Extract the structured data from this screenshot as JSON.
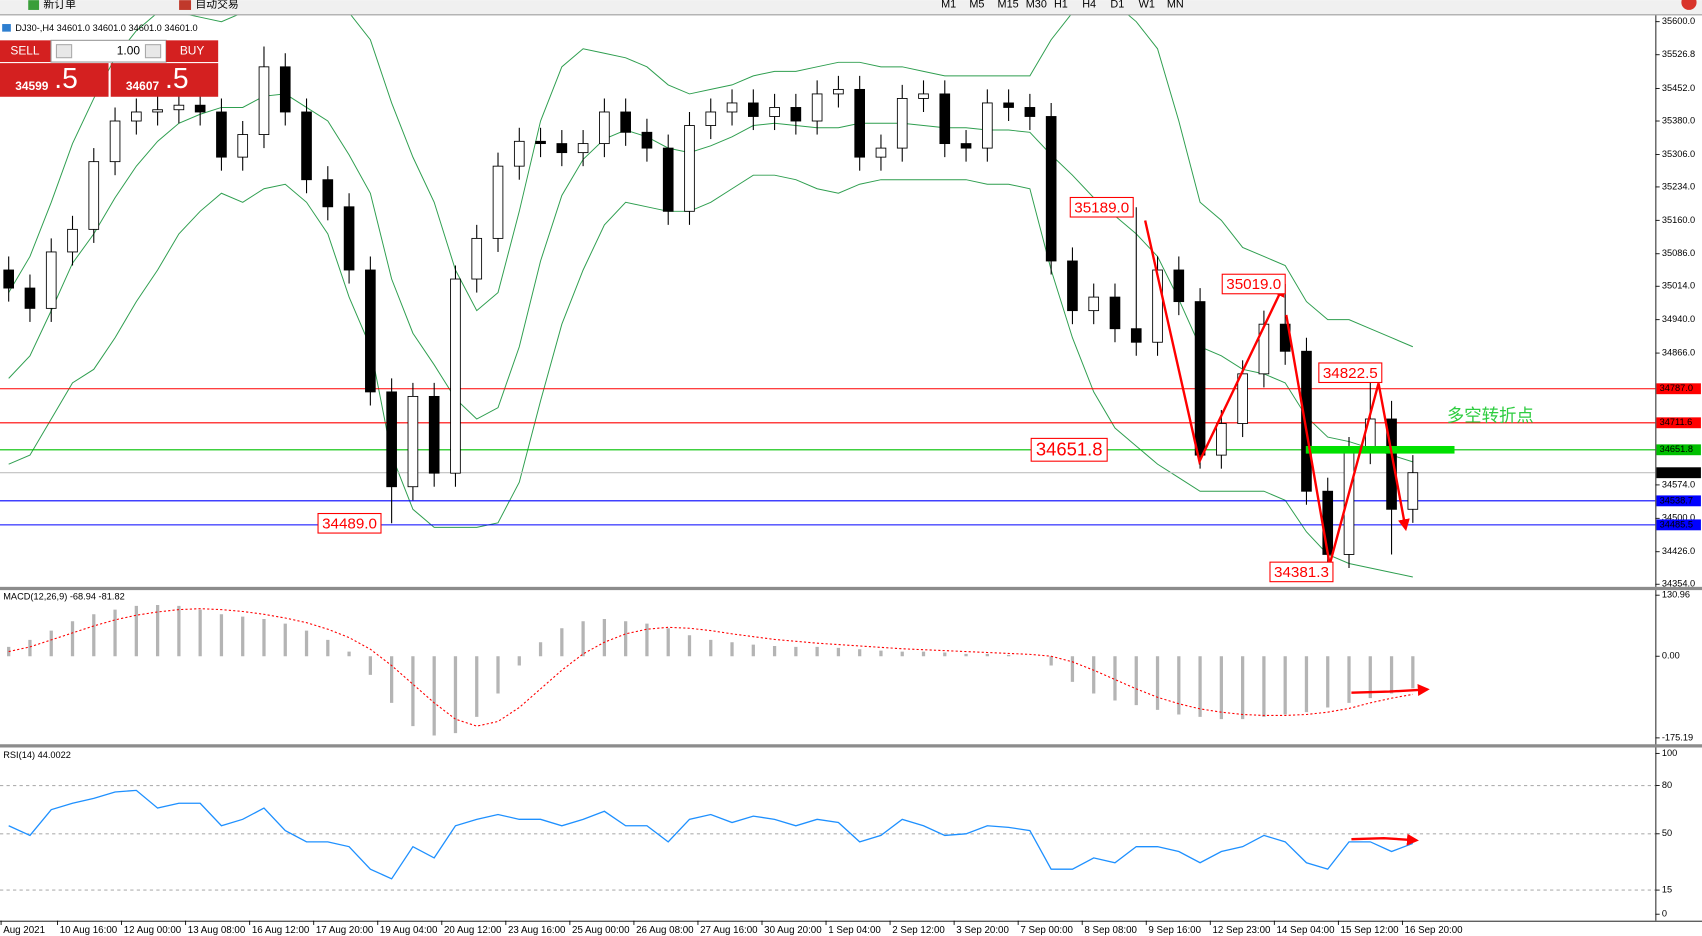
{
  "toolbar": {
    "buttons": [
      "新订单",
      "自动交易"
    ],
    "timeframes": [
      "M1",
      "M5",
      "M15",
      "M30",
      "H1",
      "H4",
      "D1",
      "W1",
      "MN"
    ]
  },
  "trade_panel": {
    "sell": "SELL",
    "lot": "1.00",
    "buy": "BUY",
    "bid_main": "34599",
    "bid_pips": ".5",
    "ask_main": "34607",
    "ask_pips": ".5"
  },
  "chart_data": [
    {
      "type": "candlestick",
      "title": "DJ30-,H4  34601.0 34601.0 34601.0 34601.0",
      "open": [
        35050,
        35010,
        34965,
        35090,
        35140,
        35290,
        35380,
        35400,
        35405,
        35415,
        35400,
        35300,
        35350,
        35500,
        35400,
        35250,
        35190,
        35050,
        34780,
        34570,
        34770,
        34600,
        35030,
        35120,
        35280,
        35335,
        35330,
        35310,
        35330,
        35400,
        35355,
        35320,
        35180,
        35370,
        35400,
        35420,
        35390,
        35410,
        35380,
        35440,
        35450,
        35300,
        35320,
        35430,
        35440,
        35330,
        35320,
        35420,
        35410,
        35390,
        35070,
        34960,
        34990,
        34920,
        34890,
        35050,
        34980,
        34640,
        34710,
        34820,
        34930,
        34870,
        34560,
        34420,
        34650,
        34720,
        34520
      ],
      "high": [
        35080,
        35040,
        35120,
        35170,
        35320,
        35410,
        35430,
        35435,
        35445,
        35445,
        35430,
        35380,
        35545,
        35530,
        35430,
        35280,
        35220,
        35080,
        34810,
        34800,
        34800,
        35060,
        35150,
        35310,
        35365,
        35365,
        35360,
        35360,
        35430,
        35430,
        35385,
        35350,
        35400,
        35430,
        35450,
        35450,
        35440,
        35440,
        35470,
        35480,
        35480,
        35350,
        35460,
        35470,
        35470,
        35360,
        35450,
        35450,
        35440,
        35420,
        35100,
        35020,
        35020,
        35189,
        35080,
        35080,
        35010,
        34740,
        34850,
        34960,
        35019,
        34900,
        34590,
        34680,
        34822,
        34760,
        34640
      ],
      "low": [
        34980,
        34935,
        34935,
        35060,
        35110,
        35260,
        35350,
        35370,
        35375,
        35370,
        35270,
        35270,
        35320,
        35370,
        35220,
        35160,
        35020,
        34750,
        34489,
        34540,
        34570,
        34570,
        35000,
        35090,
        35250,
        35300,
        35280,
        35280,
        35300,
        35325,
        35290,
        35150,
        35150,
        35340,
        35370,
        35360,
        35360,
        35350,
        35350,
        35410,
        35270,
        35270,
        35290,
        35400,
        35300,
        35290,
        35290,
        35380,
        35360,
        35040,
        34930,
        34930,
        34890,
        34860,
        34860,
        34950,
        34610,
        34610,
        34680,
        34790,
        34840,
        34530,
        34381,
        34390,
        34620,
        34420,
        34490
      ],
      "close": [
        35010,
        34965,
        35090,
        35140,
        35290,
        35380,
        35400,
        35405,
        35415,
        35400,
        35300,
        35350,
        35500,
        35400,
        35250,
        35190,
        35050,
        34780,
        34570,
        34770,
        34600,
        35030,
        35120,
        35280,
        35335,
        35330,
        35310,
        35330,
        35400,
        35355,
        35320,
        35180,
        35370,
        35400,
        35420,
        35390,
        35410,
        35380,
        35440,
        35450,
        35300,
        35320,
        35430,
        35440,
        35330,
        35320,
        35420,
        35410,
        35390,
        35070,
        34960,
        34990,
        34920,
        34890,
        35050,
        34980,
        34640,
        34710,
        34820,
        34930,
        34870,
        34560,
        34420,
        34650,
        34720,
        34520,
        34601
      ],
      "bands": [
        {
          "color": "#2e9e4f",
          "values": [
            35000,
            35080,
            35200,
            35330,
            35430,
            35520,
            35580,
            35620,
            35620,
            35610,
            35600,
            35620,
            35640,
            35640,
            35620,
            35630,
            35620,
            35560,
            35420,
            35300,
            35200,
            35050,
            34960,
            35000,
            35180,
            35380,
            35500,
            35540,
            35530,
            35520,
            35500,
            35460,
            35440,
            35450,
            35460,
            35480,
            35490,
            35490,
            35500,
            35510,
            35510,
            35500,
            35500,
            35490,
            35480,
            35480,
            35480,
            35480,
            35480,
            35560,
            35620,
            35640,
            35640,
            35600,
            35540,
            35380,
            35200,
            35160,
            35100,
            35080,
            35060,
            34980,
            34940,
            34940,
            34920,
            34900,
            34880
          ]
        },
        {
          "color": "#2e9e4f",
          "values": [
            34810,
            34860,
            34960,
            35065,
            35130,
            35210,
            35280,
            35335,
            35375,
            35395,
            35410,
            35410,
            35435,
            35440,
            35410,
            35380,
            35305,
            35220,
            35030,
            34910,
            34840,
            34765,
            34720,
            34745,
            34880,
            35070,
            35215,
            35295,
            35340,
            35360,
            35345,
            35320,
            35310,
            35325,
            35345,
            35370,
            35375,
            35370,
            35365,
            35365,
            35375,
            35375,
            35375,
            35370,
            35365,
            35365,
            35360,
            35360,
            35355,
            35305,
            35260,
            35210,
            35170,
            35130,
            35080,
            34985,
            34880,
            34860,
            34830,
            34820,
            34800,
            34725,
            34680,
            34670,
            34655,
            34640,
            34625
          ]
        },
        {
          "color": "#2e9e4f",
          "values": [
            34620,
            34640,
            34720,
            34800,
            34830,
            34900,
            34980,
            35050,
            35130,
            35180,
            35220,
            35200,
            35230,
            35240,
            35200,
            35130,
            34990,
            34880,
            34640,
            34520,
            34480,
            34480,
            34480,
            34490,
            34580,
            34760,
            34930,
            35050,
            35150,
            35200,
            35190,
            35180,
            35180,
            35200,
            35230,
            35260,
            35260,
            35250,
            35230,
            35220,
            35240,
            35250,
            35250,
            35250,
            35250,
            35250,
            35240,
            35240,
            35230,
            35050,
            34900,
            34780,
            34700,
            34660,
            34620,
            34590,
            34560,
            34560,
            34560,
            34560,
            34540,
            34470,
            34420,
            34400,
            34390,
            34380,
            34370
          ]
        }
      ],
      "ylim": [
        34347,
        35614
      ],
      "yticks": [
        {
          "value": 35600,
          "label": "35600.0"
        },
        {
          "value": 35526.8,
          "label": "35526.8"
        },
        {
          "value": 35452,
          "label": "35452.0"
        },
        {
          "value": 35380,
          "label": "35380.0"
        },
        {
          "value": 35306,
          "label": "35306.0"
        },
        {
          "value": 35234,
          "label": "35234.0"
        },
        {
          "value": 35160,
          "label": "35160.0"
        },
        {
          "value": 35086,
          "label": "35086.0"
        },
        {
          "value": 35014,
          "label": "35014.0"
        },
        {
          "value": 34940,
          "label": "34940.0"
        },
        {
          "value": 34866,
          "label": "34866.0"
        },
        {
          "value": 34574,
          "label": "34574.0"
        },
        {
          "value": 34500,
          "label": "34500.0"
        },
        {
          "value": 34426,
          "label": "34426.0"
        },
        {
          "value": 34354,
          "label": "34354.0"
        }
      ],
      "hlines": {
        "values": [
          34787,
          34711.6,
          34651.8,
          34601,
          34538.7,
          34485.5
        ],
        "value_labels": [
          "34787.0",
          "34711.6",
          "34651.8",
          "34601.0",
          "34538.7",
          "34485.5"
        ],
        "colors": [
          "#ff0000",
          "#ff0000",
          "#00c000",
          "#c0c0c0",
          "#0000ff",
          "#0000ff"
        ]
      },
      "annotations": [
        {
          "value": 35189,
          "label": "35189.0"
        },
        {
          "value": 35019,
          "label": "35019.0"
        },
        {
          "value": 34822.5,
          "label": "34822.5"
        },
        {
          "value": 34381.3,
          "label": "34381.3"
        },
        {
          "value": 34651.8,
          "label": "34651.8"
        },
        {
          "value": 34489,
          "label": "34489.0"
        }
      ],
      "note": "多空转折点"
    },
    {
      "type": "macd",
      "title": "MACD(12,26,9) -68.94 -81.82",
      "series": [
        {
          "color": "#b4b4b4",
          "values": [
            20,
            35,
            55,
            75,
            90,
            100,
            108,
            110,
            108,
            100,
            90,
            85,
            80,
            70,
            55,
            35,
            10,
            -40,
            -100,
            -150,
            -170,
            -165,
            -130,
            -80,
            -20,
            30,
            60,
            75,
            80,
            75,
            70,
            60,
            45,
            35,
            30,
            25,
            22,
            20,
            20,
            18,
            15,
            12,
            10,
            10,
            8,
            5,
            5,
            3,
            0,
            -20,
            -55,
            -80,
            -95,
            -105,
            -115,
            -125,
            -130,
            -135,
            -135,
            -130,
            -125,
            -120,
            -110,
            -100,
            -90,
            -80,
            -68.94
          ]
        },
        {
          "color": "#ff0000",
          "values": [
            10,
            20,
            35,
            50,
            65,
            78,
            88,
            95,
            100,
            102,
            100,
            96,
            90,
            82,
            72,
            58,
            40,
            15,
            -20,
            -60,
            -100,
            -135,
            -150,
            -140,
            -110,
            -70,
            -30,
            5,
            30,
            48,
            58,
            62,
            60,
            55,
            48,
            42,
            36,
            32,
            28,
            25,
            22,
            19,
            16,
            14,
            12,
            10,
            8,
            6,
            4,
            0,
            -12,
            -30,
            -50,
            -70,
            -88,
            -102,
            -113,
            -120,
            -125,
            -127,
            -127,
            -125,
            -120,
            -112,
            -100,
            -90,
            -81.82
          ]
        }
      ],
      "ylim": [
        -190,
        143
      ],
      "yticks": [
        130.96,
        {
          "value": 0,
          "label": "0.00"
        },
        -175.19
      ]
    },
    {
      "type": "rsi",
      "title": "RSI(14) 44.0022",
      "series": [
        {
          "color": "#1e90ff",
          "values": [
            55,
            49,
            65,
            69,
            72,
            76,
            77,
            66,
            69,
            69,
            55,
            59,
            66,
            52,
            45,
            45,
            42,
            28,
            22,
            42,
            35,
            55,
            59,
            62,
            59,
            59,
            55,
            59,
            64,
            55,
            55,
            45,
            59,
            62,
            57,
            61,
            59,
            55,
            59,
            57,
            45,
            49,
            59,
            55,
            49,
            50,
            55,
            54,
            52,
            28,
            28,
            35,
            32,
            42,
            42,
            39,
            32,
            39,
            42,
            49,
            45,
            32,
            28,
            45,
            45,
            39,
            44.0022
          ]
        }
      ],
      "ylim": [
        -4,
        104
      ],
      "yticks": [
        100,
        80,
        50,
        15,
        0
      ],
      "levels": [
        80,
        50,
        15
      ],
      "x_labels": [
        "Aug 2021",
        "10 Aug 16:00",
        "12 Aug 00:00",
        "13 Aug 08:00",
        "16 Aug 12:00",
        "17 Aug 20:00",
        "19 Aug 04:00",
        "20 Aug 12:00",
        "23 Aug 16:00",
        "25 Aug 00:00",
        "26 Aug 08:00",
        "27 Aug 16:00",
        "30 Aug 20:00",
        "1 Sep 04:00",
        "2 Sep 12:00",
        "3 Sep 20:00",
        "7 Sep 00:00",
        "8 Sep 08:00",
        "9 Sep 16:00",
        "12 Sep 23:00",
        "14 Sep 04:00",
        "15 Sep 12:00",
        "16 Sep 20:00"
      ]
    }
  ]
}
